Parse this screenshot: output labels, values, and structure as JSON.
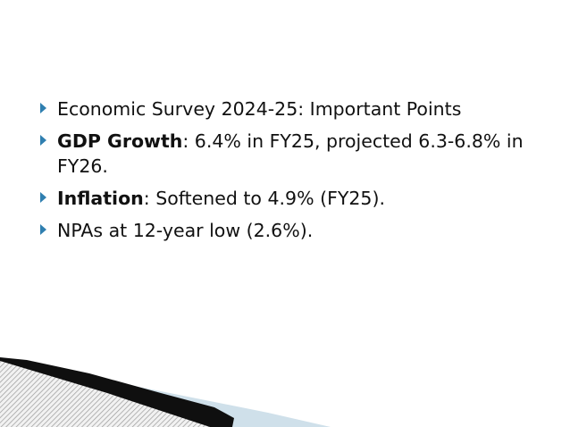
{
  "slide": {
    "bullets": [
      {
        "bold": "",
        "text": "Economic Survey 2024-25: Important Points"
      },
      {
        "bold": "GDP Growth",
        "text": ": 6.4% in FY25, projected 6.3-6.8% in FY26."
      },
      {
        "bold": "Inflation",
        "text": ": Softened to 4.9% (FY25)."
      },
      {
        "bold": "",
        "text": "NPAs at 12-year low (2.6%)."
      }
    ],
    "colors": {
      "bullet_marker": "#2f7fb0",
      "band_light": "#cfe0ea",
      "band_dark": "#0f0f0f"
    },
    "bullet_icon": "triangle-right-icon"
  }
}
